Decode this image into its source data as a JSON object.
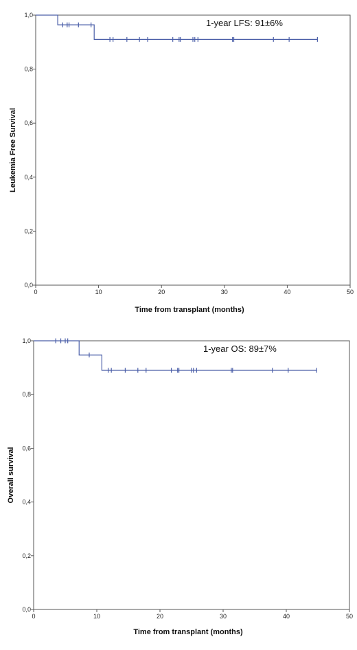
{
  "chart_data": [
    {
      "type": "line",
      "curve": "step",
      "annotation": "1-year LFS: 91±6%",
      "xlabel": "Time from transplant (months)",
      "ylabel": "Leukemia Free Survival",
      "xlim": [
        0,
        50
      ],
      "ylim": [
        0,
        1
      ],
      "x_ticks": [
        0,
        10,
        20,
        30,
        40,
        50
      ],
      "x_tick_labels": [
        "0",
        "10",
        "20",
        "30",
        "40",
        "50"
      ],
      "y_ticks": [
        0,
        0.2,
        0.4,
        0.6,
        0.8,
        1.0
      ],
      "y_tick_labels": [
        "0,0",
        "0,2",
        "0,4",
        "0,6",
        "0,8",
        "1,0"
      ],
      "grid": false,
      "line_color": "#4a5ea8",
      "steps": [
        {
          "x": 0,
          "y": 1.0
        },
        {
          "x": 3.5,
          "y": 0.964
        },
        {
          "x": 9.3,
          "y": 0.91
        },
        {
          "x": 44.8,
          "y": 0.91
        }
      ],
      "censored": [
        {
          "x": 4.3,
          "y": 0.964
        },
        {
          "x": 5.0,
          "y": 0.964
        },
        {
          "x": 5.3,
          "y": 0.964
        },
        {
          "x": 6.8,
          "y": 0.964
        },
        {
          "x": 8.8,
          "y": 0.964
        },
        {
          "x": 11.8,
          "y": 0.91
        },
        {
          "x": 12.3,
          "y": 0.91
        },
        {
          "x": 14.5,
          "y": 0.91
        },
        {
          "x": 16.5,
          "y": 0.91
        },
        {
          "x": 17.8,
          "y": 0.91
        },
        {
          "x": 21.8,
          "y": 0.91
        },
        {
          "x": 22.8,
          "y": 0.91
        },
        {
          "x": 23.0,
          "y": 0.91
        },
        {
          "x": 25.0,
          "y": 0.91
        },
        {
          "x": 25.3,
          "y": 0.91
        },
        {
          "x": 25.8,
          "y": 0.91
        },
        {
          "x": 31.3,
          "y": 0.91
        },
        {
          "x": 31.5,
          "y": 0.91
        },
        {
          "x": 37.8,
          "y": 0.91
        },
        {
          "x": 40.3,
          "y": 0.91
        },
        {
          "x": 44.8,
          "y": 0.91
        }
      ]
    },
    {
      "type": "line",
      "curve": "step",
      "annotation": "1-year OS: 89±7%",
      "xlabel": "Time from transplant (months)",
      "ylabel": "Overall survival",
      "xlim": [
        0,
        50
      ],
      "ylim": [
        0,
        1
      ],
      "x_ticks": [
        0,
        10,
        20,
        30,
        40,
        50
      ],
      "x_tick_labels": [
        "0",
        "10",
        "20",
        "30",
        "40",
        "50"
      ],
      "y_ticks": [
        0,
        0.2,
        0.4,
        0.6,
        0.8,
        1.0
      ],
      "y_tick_labels": [
        "0,0",
        "0,2",
        "0,4",
        "0,6",
        "0,8",
        "1,0"
      ],
      "grid": false,
      "line_color": "#4a5ea8",
      "steps": [
        {
          "x": 0,
          "y": 1.0
        },
        {
          "x": 7.2,
          "y": 0.947
        },
        {
          "x": 10.8,
          "y": 0.89
        },
        {
          "x": 44.8,
          "y": 0.89
        }
      ],
      "censored": [
        {
          "x": 3.5,
          "y": 1.0
        },
        {
          "x": 4.3,
          "y": 1.0
        },
        {
          "x": 5.0,
          "y": 1.0
        },
        {
          "x": 5.4,
          "y": 1.0
        },
        {
          "x": 8.8,
          "y": 0.947
        },
        {
          "x": 11.8,
          "y": 0.89
        },
        {
          "x": 12.3,
          "y": 0.89
        },
        {
          "x": 14.5,
          "y": 0.89
        },
        {
          "x": 16.5,
          "y": 0.89
        },
        {
          "x": 17.8,
          "y": 0.89
        },
        {
          "x": 21.8,
          "y": 0.89
        },
        {
          "x": 22.8,
          "y": 0.89
        },
        {
          "x": 23.0,
          "y": 0.89
        },
        {
          "x": 25.0,
          "y": 0.89
        },
        {
          "x": 25.3,
          "y": 0.89
        },
        {
          "x": 25.8,
          "y": 0.89
        },
        {
          "x": 31.3,
          "y": 0.89
        },
        {
          "x": 31.5,
          "y": 0.89
        },
        {
          "x": 37.8,
          "y": 0.89
        },
        {
          "x": 40.3,
          "y": 0.89
        },
        {
          "x": 44.8,
          "y": 0.89
        }
      ]
    }
  ]
}
